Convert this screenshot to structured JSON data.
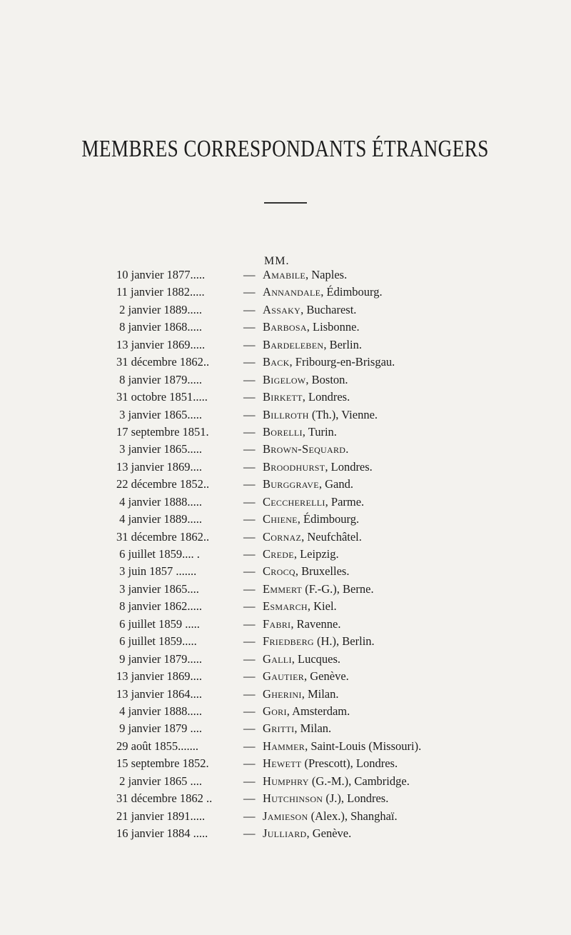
{
  "title": "MEMBRES CORRESPONDANTS ÉTRANGERS",
  "salutation": "MM.",
  "dash": "—",
  "entries": [
    {
      "date": "10 janvier 1877.....",
      "surname": "Amabile",
      "rest": ", Naples."
    },
    {
      "date": "11 janvier 1882.....",
      "surname": "Annandale",
      "rest": ", Édimbourg."
    },
    {
      "date": " 2 janvier 1889.....",
      "surname": "Assaky",
      "rest": ", Bucharest."
    },
    {
      "date": " 8 janvier 1868.....",
      "surname": "Barbosa",
      "rest": ", Lisbonne."
    },
    {
      "date": "13 janvier 1869.....",
      "surname": "Bardeleben",
      "rest": ", Berlin."
    },
    {
      "date": "31 décembre 1862..",
      "surname": "Back",
      "rest": ", Fribourg-en-Brisgau."
    },
    {
      "date": " 8 janvier 1879.....",
      "surname": "Bigelow",
      "rest": ", Boston."
    },
    {
      "date": "31 octobre 1851.....",
      "surname": "Birkett",
      "rest": ", Londres."
    },
    {
      "date": " 3 janvier 1865.....",
      "surname": "Billroth",
      "rest": " (Th.), Vienne."
    },
    {
      "date": "17 septembre 1851.",
      "surname": "Borelli",
      "rest": ", Turin."
    },
    {
      "date": " 3 janvier 1865.....",
      "surname": "Brown-Sequard",
      "rest": "."
    },
    {
      "date": "13 janvier 1869....",
      "surname": "Broodhurst",
      "rest": ", Londres."
    },
    {
      "date": "22 décembre 1852..",
      "surname": "Burggrave",
      "rest": ", Gand."
    },
    {
      "date": " 4 janvier 1888.....",
      "surname": "Ceccherelli",
      "rest": ", Parme."
    },
    {
      "date": " 4 janvier 1889.....",
      "surname": "Chiene",
      "rest": ", Édimbourg."
    },
    {
      "date": "31 décembre 1862..",
      "surname": "Cornaz",
      "rest": ", Neufchâtel."
    },
    {
      "date": " 6 juillet 1859.... .",
      "surname": "Crede",
      "rest": ", Leipzig."
    },
    {
      "date": " 3 juin 1857 .......",
      "surname": "Crocq",
      "rest": ", Bruxelles."
    },
    {
      "date": " 3 janvier 1865....",
      "surname": "Emmert",
      "rest": " (F.-G.), Berne."
    },
    {
      "date": " 8 janvier 1862.....",
      "surname": "Esmarch",
      "rest": ", Kiel."
    },
    {
      "date": " 6 juillet 1859 .....",
      "surname": "Fabri",
      "rest": ", Ravenne."
    },
    {
      "date": " 6 juillet 1859.....",
      "surname": "Friedberg",
      "rest": " (H.), Berlin."
    },
    {
      "date": " 9 janvier 1879.....",
      "surname": "Galli",
      "rest": ", Lucques."
    },
    {
      "date": "13 janvier 1869....",
      "surname": "Gautier",
      "rest": ", Genève."
    },
    {
      "date": "13 janvier 1864....",
      "surname": "Gherini",
      "rest": ", Milan."
    },
    {
      "date": " 4 janvier 1888.....",
      "surname": "Gori",
      "rest": ", Amsterdam."
    },
    {
      "date": " 9 janvier 1879 ....",
      "surname": "Gritti",
      "rest": ", Milan."
    },
    {
      "date": "29 août 1855.......",
      "surname": "Hammer",
      "rest": ", Saint-Louis (Missouri)."
    },
    {
      "date": "15 septembre 1852.",
      "surname": "Hewett",
      "rest": " (Prescott), Londres."
    },
    {
      "date": " 2 janvier 1865 ....",
      "surname": "Humphry",
      "rest": " (G.-M.), Cambridge."
    },
    {
      "date": "31 décembre 1862 ..",
      "surname": "Hutchinson",
      "rest": " (J.), Londres."
    },
    {
      "date": "21 janvier 1891.....",
      "surname": "Jamieson",
      "rest": " (Alex.), Shanghaï."
    },
    {
      "date": "16 janvier 1884 .....",
      "surname": "Julliard",
      "rest": ", Genève."
    }
  ]
}
